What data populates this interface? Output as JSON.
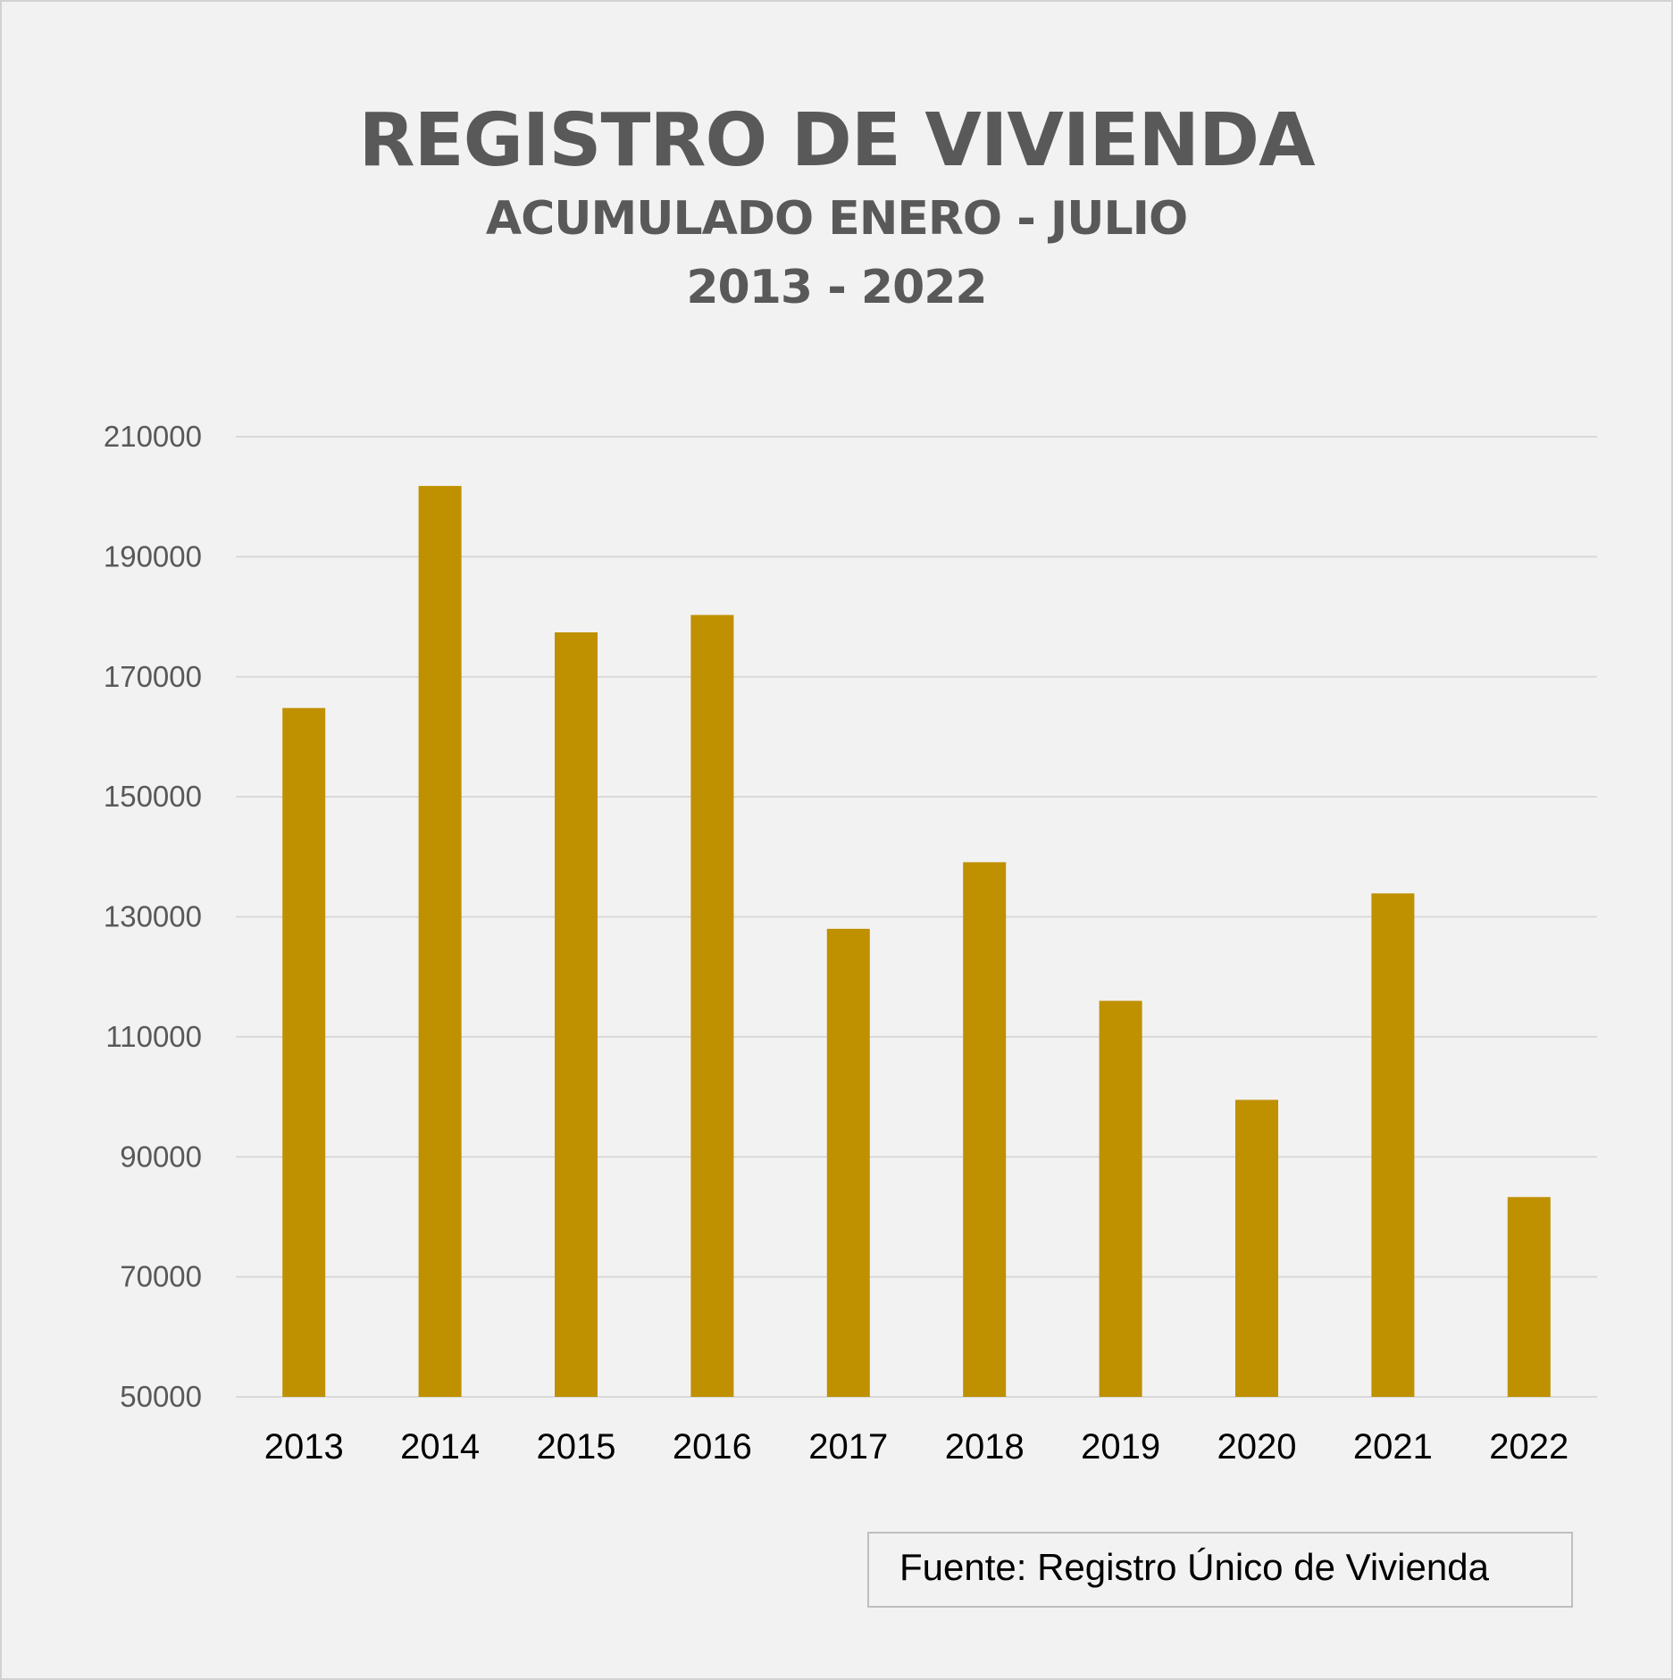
{
  "chart_data": {
    "type": "bar",
    "title": "REGISTRO DE VIVIENDA",
    "subtitle": [
      "ACUMULADO ENERO - JULIO",
      "2013 - 2022"
    ],
    "categories": [
      "2013",
      "2014",
      "2015",
      "2016",
      "2017",
      "2018",
      "2019",
      "2020",
      "2021",
      "2022"
    ],
    "values": [
      164800,
      201800,
      177400,
      180300,
      128000,
      139100,
      116000,
      99500,
      133900,
      83300
    ],
    "ylim": [
      50000,
      210000
    ],
    "yticks": [
      "50000",
      "70000",
      "90000",
      "110000",
      "130000",
      "150000",
      "170000",
      "190000",
      "210000"
    ],
    "xlabel": "",
    "ylabel": "",
    "grid": true,
    "legend": "none",
    "colors": {
      "bar": "#bf9000",
      "grid": "#d9d9d9",
      "background": "#f2f2f2"
    }
  },
  "source": "Fuente: Registro Único de Vivienda"
}
